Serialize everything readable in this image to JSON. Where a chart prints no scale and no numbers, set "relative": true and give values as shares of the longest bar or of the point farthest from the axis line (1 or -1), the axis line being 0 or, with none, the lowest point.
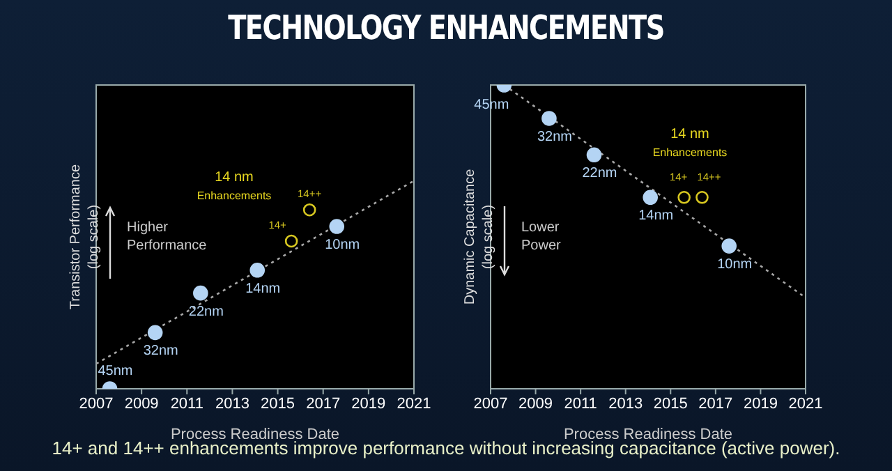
{
  "chart_data": [
    {
      "type": "scatter",
      "title": "TECHNOLOGY ENHANCEMENTS",
      "xlabel": "Process Readiness Date",
      "ylabel": "Transistor Performance\n(log scale)",
      "relative": true,
      "xlim": [
        2007,
        2021
      ],
      "xticks": [
        2007,
        2009,
        2011,
        2013,
        2015,
        2017,
        2019,
        2021
      ],
      "marker": "circle",
      "annotations": [
        "Higher\nPerformance",
        "14 nm\nEnhancements",
        "14+ and 14++ enhancements improve performance without increasing capacitance (active power).",
        {
          "text": "45nm",
          "x": 2007.6,
          "y": 0
        },
        {
          "text": "32nm",
          "x": 2009.6,
          "y": 0.27
        },
        {
          "text": "22nm",
          "x": 2011.6,
          "y": 0.46
        },
        {
          "text": "14nm",
          "x": 2014.1,
          "y": 0.57
        },
        {
          "text": "10nm",
          "x": 2017.6,
          "y": 0.78
        },
        {
          "text": "14+",
          "x": 2015.6,
          "y": 0.71
        },
        {
          "text": "14++",
          "x": 2016.4,
          "y": 0.86
        }
      ],
      "series": [
        {
          "color": "#b4d4f4",
          "x": [
            2007.6,
            2009.6,
            2011.6,
            2014.1,
            2017.6
          ],
          "values": [
            0,
            0.27,
            0.46,
            0.57,
            0.78
          ]
        },
        {
          "color": "#d8c820",
          "x": [
            2015.6,
            2016.4
          ],
          "values": [
            0.71,
            0.86
          ]
        },
        {
          "type": "line",
          "color": "#a8a8a8",
          "line_style": "dotted",
          "marker": "none",
          "x": [
            2007,
            2021
          ],
          "values": [
            0.12,
            1
          ]
        }
      ]
    },
    {
      "type": "scatter",
      "xlabel": "Process Readiness Date",
      "ylabel": "Dynamic Capacitance\n(log scale)",
      "relative": true,
      "xlim": [
        2007,
        2021
      ],
      "xticks": [
        2007,
        2009,
        2011,
        2013,
        2015,
        2017,
        2019,
        2021
      ],
      "marker": "circle",
      "annotations": [
        "Lower\nPower",
        "14 nm\nEnhancements",
        {
          "text": "45nm",
          "x": 2007.6,
          "y": 1
        },
        {
          "text": "32nm",
          "x": 2009.6,
          "y": 0.89
        },
        {
          "text": "22nm",
          "x": 2011.6,
          "y": 0.77
        },
        {
          "text": "14nm",
          "x": 2014.1,
          "y": 0.63
        },
        {
          "text": "10nm",
          "x": 2017.6,
          "y": 0.47
        },
        {
          "text": "14+",
          "x": 2015.6,
          "y": 0.63
        },
        {
          "text": "14++",
          "x": 2016.4,
          "y": 0.63
        }
      ],
      "series": [
        {
          "color": "#b4d4f4",
          "x": [
            2007.6,
            2009.6,
            2011.6,
            2014.1,
            2017.6
          ],
          "values": [
            1,
            0.89,
            0.77,
            0.63,
            0.47
          ]
        },
        {
          "color": "#d8c820",
          "x": [
            2015.6,
            2016.4
          ],
          "values": [
            0.63,
            0.63
          ]
        },
        {
          "type": "line",
          "color": "#a8a8a8",
          "line_style": "dotted",
          "marker": "none",
          "x": [
            2007.6,
            2021
          ],
          "values": [
            1,
            0.3
          ]
        }
      ]
    }
  ]
}
